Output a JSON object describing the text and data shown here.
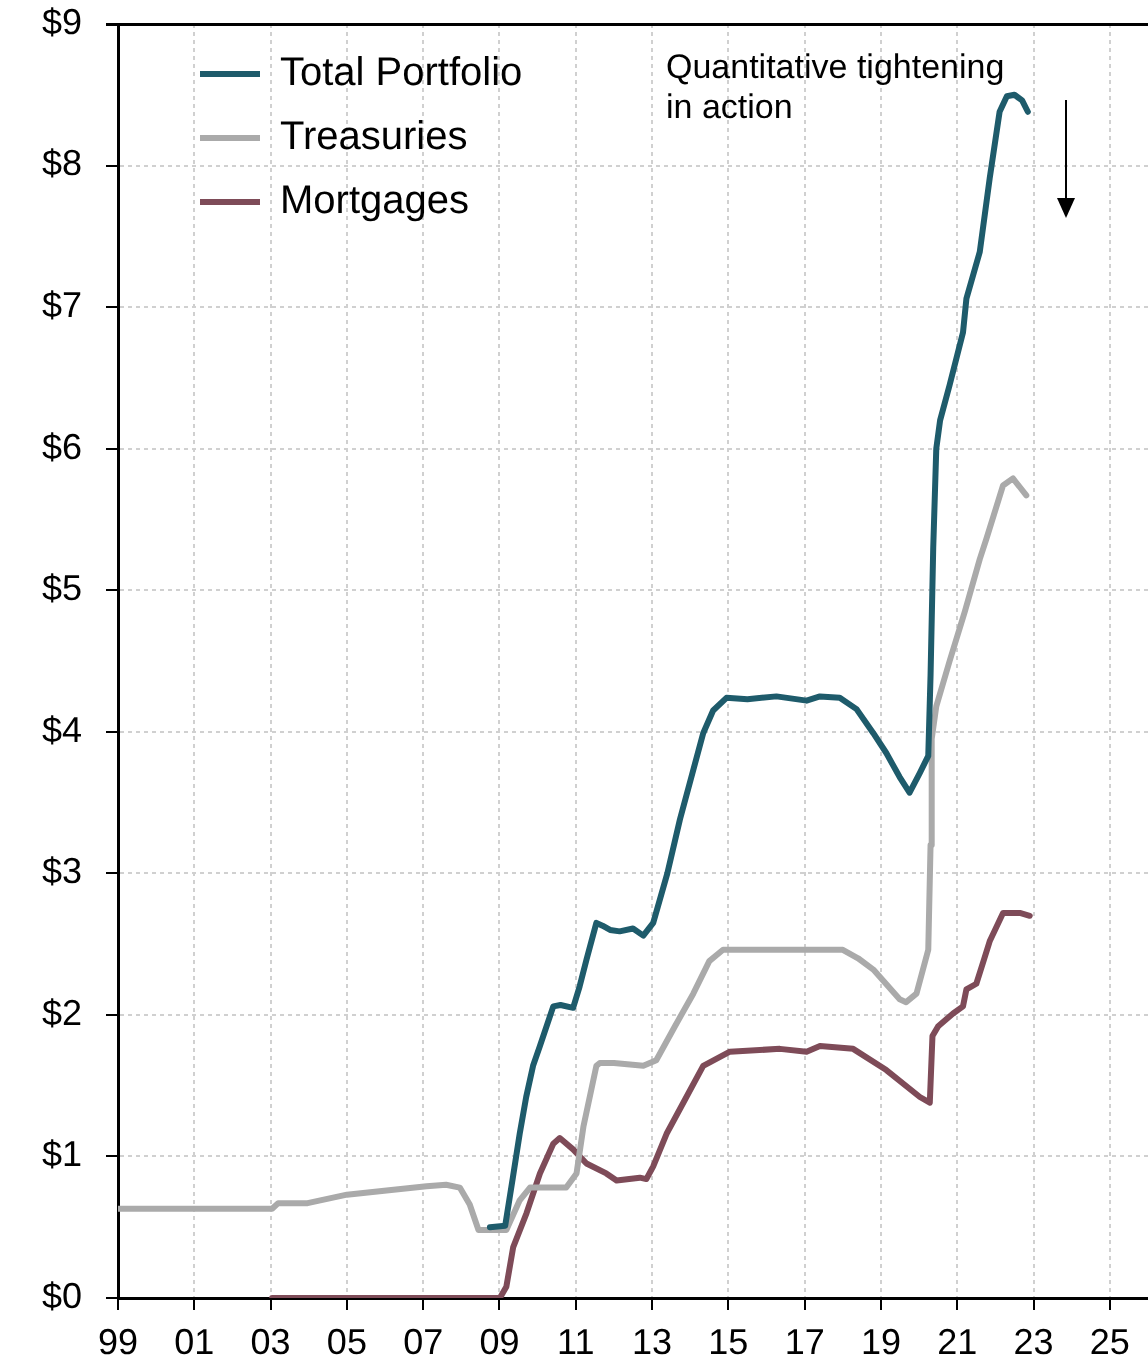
{
  "chart_data": {
    "type": "line",
    "annotations": [
      "Quantitative tightening in action"
    ],
    "xlim": [
      1999,
      2026
    ],
    "xticks": [
      {
        "value": 1999,
        "label": "99"
      },
      {
        "value": 2001,
        "label": "01"
      },
      {
        "value": 2003,
        "label": "03"
      },
      {
        "value": 2005,
        "label": "05"
      },
      {
        "value": 2007,
        "label": "07"
      },
      {
        "value": 2009,
        "label": "09"
      },
      {
        "value": 2011,
        "label": "11"
      },
      {
        "value": 2013,
        "label": "13"
      },
      {
        "value": 2015,
        "label": "15"
      },
      {
        "value": 2017,
        "label": "17"
      },
      {
        "value": 2019,
        "label": "19"
      },
      {
        "value": 2021,
        "label": "21"
      },
      {
        "value": 2023,
        "label": "23"
      },
      {
        "value": 2025,
        "label": "25"
      }
    ],
    "ylim": [
      0,
      9
    ],
    "yticks": [
      {
        "value": 0,
        "label": "$0"
      },
      {
        "value": 1,
        "label": "$1"
      },
      {
        "value": 2,
        "label": "$2"
      },
      {
        "value": 3,
        "label": "$3"
      },
      {
        "value": 4,
        "label": "$4"
      },
      {
        "value": 5,
        "label": "$5"
      },
      {
        "value": 6,
        "label": "$6"
      },
      {
        "value": 7,
        "label": "$7"
      },
      {
        "value": 8,
        "label": "$8"
      },
      {
        "value": 9,
        "label": "$9"
      }
    ],
    "grid": true,
    "legend": "top left",
    "series": [
      {
        "name": "Total Portfolio",
        "color": "#1e5b6b",
        "x": [
          2008.75,
          2009.15,
          2009.35,
          2009.53,
          2009.7,
          2009.88,
          2010.06,
          2010.41,
          2010.6,
          2010.93,
          2011.1,
          2011.28,
          2011.54,
          2011.7,
          2011.9,
          2012.15,
          2012.5,
          2012.77,
          2013.03,
          2013.4,
          2013.73,
          2014.05,
          2014.34,
          2014.6,
          2014.95,
          2015.5,
          2016.26,
          2017.05,
          2017.4,
          2017.92,
          2018.36,
          2018.8,
          2019.14,
          2019.49,
          2019.75,
          2020.02,
          2020.24,
          2020.3,
          2020.37,
          2020.45,
          2020.55,
          2020.8,
          2021.15,
          2021.24,
          2021.59,
          2021.85,
          2022.11,
          2022.3,
          2022.5,
          2022.7,
          2022.85
        ],
        "values": [
          0.5,
          0.51,
          0.85,
          1.16,
          1.42,
          1.64,
          1.78,
          2.06,
          2.07,
          2.05,
          2.2,
          2.39,
          2.65,
          2.63,
          2.6,
          2.59,
          2.61,
          2.56,
          2.65,
          3.0,
          3.38,
          3.7,
          3.99,
          4.15,
          4.24,
          4.23,
          4.25,
          4.22,
          4.25,
          4.24,
          4.16,
          3.99,
          3.85,
          3.68,
          3.57,
          3.71,
          3.83,
          4.4,
          5.3,
          6.0,
          6.2,
          6.45,
          6.82,
          7.06,
          7.39,
          7.91,
          8.38,
          8.49,
          8.5,
          8.46,
          8.38
        ]
      },
      {
        "name": "Treasuries",
        "color": "#aaaaaa",
        "x": [
          1999,
          2003.04,
          2003.2,
          2003.97,
          2005.0,
          2006.04,
          2007.09,
          2007.6,
          2007.96,
          2008.22,
          2008.45,
          2009.18,
          2009.53,
          2009.8,
          2010.75,
          2011.02,
          2011.2,
          2011.54,
          2011.63,
          2012.0,
          2012.77,
          2013.11,
          2013.6,
          2014.08,
          2014.5,
          2014.86,
          2016.0,
          2018.0,
          2018.4,
          2018.8,
          2019.49,
          2019.66,
          2019.93,
          2020.24,
          2020.3,
          2020.33,
          2020.45,
          2020.8,
          2021.2,
          2021.59,
          2021.76,
          2022.2,
          2022.46,
          2022.81
        ],
        "values": [
          0.63,
          0.63,
          0.67,
          0.67,
          0.73,
          0.76,
          0.79,
          0.8,
          0.78,
          0.66,
          0.48,
          0.48,
          0.69,
          0.78,
          0.78,
          0.88,
          1.21,
          1.64,
          1.66,
          1.66,
          1.64,
          1.68,
          1.92,
          2.15,
          2.38,
          2.46,
          2.46,
          2.46,
          2.4,
          2.32,
          2.11,
          2.09,
          2.15,
          2.46,
          3.2,
          3.95,
          4.18,
          4.5,
          4.85,
          5.22,
          5.36,
          5.74,
          5.79,
          5.67
        ]
      },
      {
        "name": "Mortgages",
        "color": "#7e4b58",
        "x": [
          2003.04,
          2009.01,
          2009.18,
          2009.36,
          2009.71,
          2010.06,
          2010.41,
          2010.58,
          2010.93,
          2011.28,
          2011.8,
          2012.07,
          2012.68,
          2012.85,
          2013.03,
          2013.38,
          2013.9,
          2014.34,
          2015.04,
          2016.35,
          2017.05,
          2017.4,
          2018.27,
          2019.14,
          2020.02,
          2020.28,
          2020.35,
          2020.5,
          2020.89,
          2021.15,
          2021.24,
          2021.5,
          2021.7,
          2021.85,
          2022.2,
          2022.64,
          2022.9
        ],
        "values": [
          0,
          0,
          0.08,
          0.36,
          0.6,
          0.88,
          1.09,
          1.13,
          1.05,
          0.95,
          0.88,
          0.83,
          0.85,
          0.84,
          0.93,
          1.16,
          1.42,
          1.64,
          1.74,
          1.76,
          1.74,
          1.78,
          1.76,
          1.61,
          1.42,
          1.38,
          1.85,
          1.92,
          2.01,
          2.06,
          2.18,
          2.22,
          2.39,
          2.52,
          2.72,
          2.72,
          2.7
        ]
      }
    ]
  }
}
